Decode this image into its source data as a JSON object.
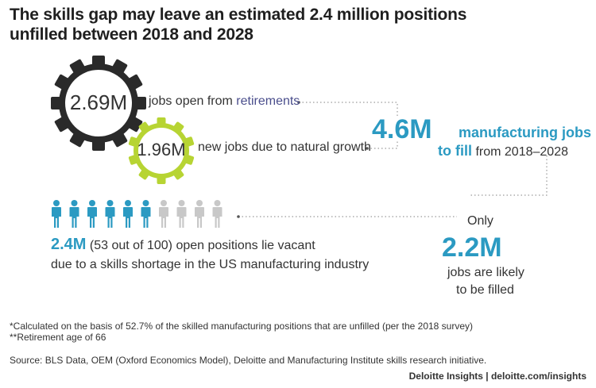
{
  "title": "The skills gap may leave an estimated 2.4 million positions unfilled between 2018 and 2028",
  "retirements": {
    "value": "2.69M",
    "desc_prefix": "jobs open from ",
    "desc_highlight": "retirements"
  },
  "growth": {
    "value": "1.96M",
    "desc": "new jobs due to natural growth"
  },
  "total": {
    "value": "4.6M",
    "line1_label": "manufacturing jobs",
    "line2_highlight": "to fill",
    "line2_rest": "from 2018–2028"
  },
  "vacant": {
    "people_filled": 6,
    "people_total": 10,
    "value": "2.4M",
    "line1_rest": "(53 out of 100) open positions lie vacant",
    "line2": "due to a skills shortage in the US manufacturing industry"
  },
  "filled": {
    "prefix": "Only",
    "value": "2.2M",
    "line1": "jobs are likely",
    "line2": "to be filled"
  },
  "notes": {
    "note1": "*Calculated on the basis of 52.7% of the skilled manufacturing positions that are unfilled (per the 2018 survey)",
    "note2": "**Retirement age of 66",
    "source": "Source: BLS Data, OEM (Oxford Economics Model), Deloitte and Manufacturing Institute skills research initiative."
  },
  "footer": "Deloitte Insights | deloitte.com/insights",
  "colors": {
    "gear_dark": "#2a2a2a",
    "gear_green": "#b7d433",
    "teal": "#2b9ac2",
    "person_empty": "#c8c8c8",
    "highlight_text": "#4a4e8c"
  }
}
